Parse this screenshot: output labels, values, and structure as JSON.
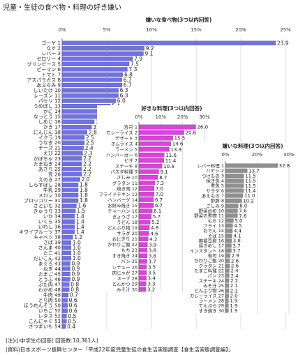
{
  "title": "児童・生徒の食べ物・料理の好き嫌い",
  "notes": {
    "line1": "(注)小中学生の回答( 回答数:10,361人)",
    "line2": "(資料)日本スポーツ振興センター「平成22年度児童生徒の食生活実態調査【食生活実態調査編】」"
  },
  "colors": {
    "disliked_food": "#7070e8",
    "liked_dish": "#e040e0",
    "disliked_dish": "#909090"
  },
  "chart_data": [
    {
      "type": "bar",
      "orientation": "horizontal",
      "title": "嫌いな食べ物(3つ以内回答)",
      "xlim": [
        0,
        25
      ],
      "xticks": [
        "0%",
        "5%",
        "10%",
        "15%",
        "20%",
        "25%"
      ],
      "categories": [
        "ゴーヤ 1",
        "なす 2",
        "レバー 3",
        "セロリー 4",
        "グリンピース 5",
        "ピーマン 6",
        "トマト 7",
        "アスパラガス 8",
        "あぶらみ 9",
        "しいたけ 10",
        "レーズン 11",
        "パセリ 12",
        "うめぼし 13",
        "かに 14",
        "なっとう 15",
        "しめじ 16",
        "かき 17",
        "にんじん 18",
        "イクラ 19",
        "うなぎ 20",
        "チーズ 21",
        "えび 22",
        "かぼちゃ 23",
        "たまねぎ 24",
        "あさり 25",
        "豆 26",
        "えのき 27",
        "しらすぼし 28",
        "牛乳 29",
        "メロン 30",
        "ブロッコリー 31",
        "さといも 32",
        "きゅうり 33",
        "いか 34",
        "いくら 35",
        "いわし 36",
        "キウイフルーツ 37",
        "キャベツ 38",
        "さば 39",
        "さんま 40",
        "たこ 41",
        "だいこん 42",
        "まぐろ 43",
        "ねぎ 44",
        "たまご 45",
        "とうふ 46",
        "ぶた肉 47",
        "わかめ 48",
        "牛肉 49",
        "とり肉 50",
        "ほうれんそう 50",
        "いちご 52",
        "レタス 52",
        "こんにゃく 53",
        "さつまいも 54"
      ],
      "values": [
        23.9,
        9.2,
        9.1,
        7.9,
        7.5,
        7.3,
        6.8,
        6.7,
        6.7,
        6.3,
        6.3,
        6.0,
        5.4,
        5.0,
        4.6,
        3.6,
        3.3,
        2.8,
        2.5,
        2.5,
        2.4,
        2.3,
        2.2,
        2.2,
        2.2,
        2.2,
        2.0,
        1.8,
        1.8,
        1.8,
        1.8,
        1.6,
        1.5,
        1.4,
        1.4,
        1.4,
        1.4,
        1.2,
        1.0,
        1.0,
        1.0,
        1.0,
        0.9,
        0.9,
        0.9,
        0.9,
        0.8,
        0.8,
        0.7,
        0.6,
        0.6,
        0.6,
        0.5,
        0.5,
        0.4
      ]
    },
    {
      "type": "bar",
      "orientation": "horizontal",
      "title": "好きな料理(3つ以内回答)",
      "xlim": [
        0,
        30
      ],
      "xticks": [
        "0%",
        "10%",
        "20%",
        "30%"
      ],
      "categories": [
        "寿司 1",
        "カレーライス 2",
        "デザート 3",
        "オムライス 4",
        "ラーメン 5",
        "ハンバーガー 6",
        "ピザ 7",
        "ステーキ 8",
        "パスタ料理 9",
        "さしみ 10",
        "グラタン 11",
        "焼き肉 12",
        "フライドチキン 13",
        "ハンバーグ 14",
        "お好み焼き 15",
        "チャーハン 16",
        "ぎょうざ 17",
        "うどん 18",
        "どんぶり物 19",
        "サラダ 20",
        "おにぎり 21",
        "かわりご飯 22",
        "もち 23",
        "すき焼き 24",
        "パン 25",
        "シチュー 26",
        "肉じゃが 27",
        "スープ 28",
        "とんかつ 29",
        "みそ汁 30"
      ],
      "values": [
        26.0,
        20.6,
        15.5,
        14.6,
        13.9,
        11.6,
        11.4,
        10.6,
        9.1,
        8.7,
        7.3,
        7.0,
        7.0,
        6.7,
        6.7,
        6.1,
        5.7,
        5.2,
        4.8,
        4.6,
        4.2,
        3.9,
        3.8,
        3.8,
        3.7,
        3.5,
        3.5,
        3.4,
        3.3,
        3.2
      ]
    },
    {
      "type": "bar",
      "orientation": "horizontal",
      "title": "嫌いな料理(3つ以内回答)",
      "xlim": [
        0,
        40
      ],
      "xticks": [
        "0%",
        "20%",
        "40%"
      ],
      "categories": [
        "レバー料理 1",
        "ハヤシ 2",
        "つけもの 3",
        "焼き魚 4",
        "煮魚 5",
        "サラダ 6",
        "あえもの 7",
        "酢豚 8",
        "さしみ 9",
        "野菜炒め 10",
        "野菜の煮物 11",
        "もち 12",
        "フライ 13",
        "おでん 14",
        "そば 15",
        "麻婆豆腐 16",
        "焼きめし 17",
        "インスタント 18",
        "寿司 19",
        "かわりご飯 20",
        "グラタン 21",
        "たまご料理 22",
        "パン 23",
        "ステーキ 24",
        "みそ汁 25",
        "どんぶり物 26",
        "カレーライス 27",
        "ラーメン 28",
        "てんぷら 29",
        "すき焼き 30"
      ],
      "values": [
        32.8,
        13.7,
        11.5,
        11.5,
        11.5,
        11.4,
        11.0,
        10.2,
        8.0,
        7.6,
        7.6,
        5.0,
        4.5,
        4.4,
        4.1,
        3.8,
        3.7,
        3.7,
        2.9,
        2.6,
        2.6,
        2.4,
        2.4,
        2.2,
        2.1,
        2.1,
        2.0,
        1.9,
        1.9,
        1.9
      ]
    }
  ]
}
